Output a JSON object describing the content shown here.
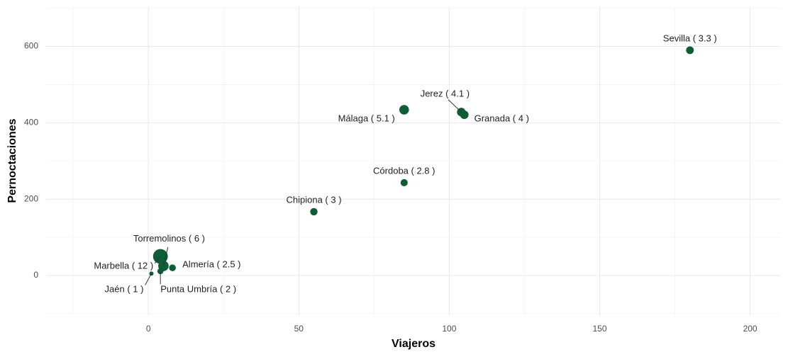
{
  "chart_data": {
    "type": "scatter",
    "x_label": "Viajeros",
    "y_label": "Pernoctaciones",
    "labels": [
      "Sevilla ( 3.3 )",
      "Jerez ( 4.1 )",
      "Granada ( 4 )",
      "Málaga ( 5.1 )",
      "Córdoba ( 2.8 )",
      "Chipiona ( 3 )",
      "Torremolinos ( 6 )",
      "Marbella ( 12 )",
      "Almería ( 2.5 )",
      "Jaén ( 1 )",
      "Punta Umbría ( 2 )"
    ],
    "x": [
      180,
      104,
      105,
      85,
      85,
      55,
      5,
      4,
      8,
      1,
      4
    ],
    "y": [
      590,
      428,
      421,
      434,
      243,
      167,
      25,
      50,
      20,
      5,
      11
    ],
    "sizes": [
      3.3,
      4.1,
      4,
      5.1,
      2.8,
      3,
      6,
      12,
      2.5,
      1,
      2
    ],
    "color": "#0b5e36",
    "xlim": [
      -34,
      210
    ],
    "xticks": [
      0,
      50,
      100,
      150,
      200
    ],
    "ylim": [
      -104,
      703
    ],
    "yticks": [
      0,
      200,
      400,
      600
    ],
    "grid": true
  }
}
